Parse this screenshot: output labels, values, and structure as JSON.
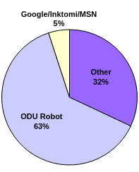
{
  "chart_data": {
    "type": "pie",
    "categories": [
      "Other",
      "ODU Robot",
      "Google/Inktomi/MSN"
    ],
    "values": [
      32,
      63,
      5
    ],
    "value_labels": [
      "32%",
      "63%",
      "5%"
    ],
    "colors": [
      "#9966ff",
      "#ccccff",
      "#ffffcc"
    ],
    "data_labels": true
  }
}
